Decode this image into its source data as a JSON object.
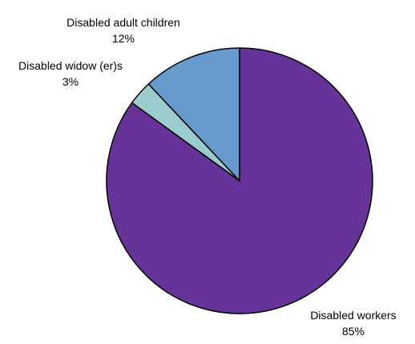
{
  "chart_data": {
    "type": "pie",
    "title": "",
    "slices": [
      {
        "label": "Disabled workers",
        "value_label": "85%",
        "value": 85,
        "color": "#663399"
      },
      {
        "label": "Disabled widow (er)s",
        "value_label": "3%",
        "value": 3,
        "color": "#99cccc"
      },
      {
        "label": "Disabled adult children",
        "value_label": "12%",
        "value": 12,
        "color": "#6699cc"
      }
    ],
    "start": "12 o'clock",
    "direction": "clockwise",
    "legend": "none"
  }
}
